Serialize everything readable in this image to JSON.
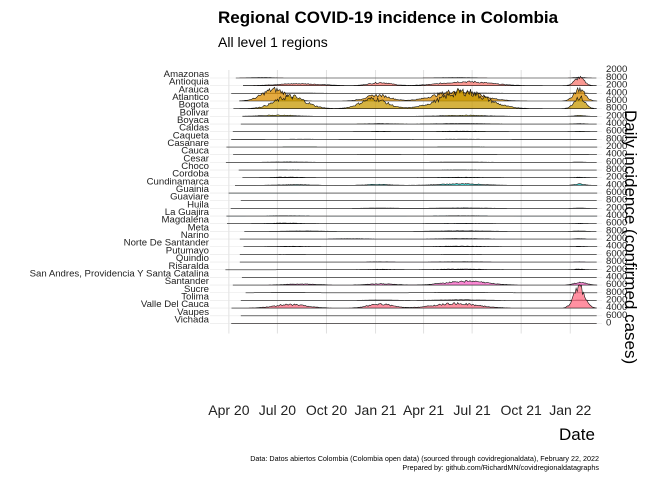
{
  "chart_data": {
    "type": "area",
    "subtype": "ridgeline",
    "title": "Regional COVID-19 incidence in Colombia",
    "subtitle": "All level 1 regions",
    "xlabel": "Date",
    "ylabel": "Daily incidence (confirmed cases)",
    "x_ticks": [
      "Apr 20",
      "Jul 20",
      "Oct 20",
      "Jan 21",
      "Apr 21",
      "Jul 21",
      "Oct 21",
      "Jan 22"
    ],
    "x_tick_dates": [
      "2020-04-01",
      "2020-07-01",
      "2020-10-01",
      "2021-01-01",
      "2021-04-01",
      "2021-07-01",
      "2021-10-01",
      "2022-01-01"
    ],
    "xlim": [
      "2020-03-06",
      "2022-02-22"
    ],
    "y_tick_labels": [
      "2000",
      "4000",
      "6000",
      "8000",
      "0"
    ],
    "y_per_row": [
      0,
      2000
    ],
    "caption": [
      "Data: Datos abiertos Colombia (Colombia open data) (sourced through covidregionaldata), February 22, 2022",
      "Prepared by: github.com/RichardMN/covidregionaldatagraphs"
    ],
    "grid": true,
    "legend": "none",
    "series": [
      {
        "name": "Amazonas",
        "color": "#f8766d",
        "peak_scale": 0.1,
        "peaks": [
          [
            "2020-06-01",
            0.3,
            20
          ],
          [
            "2021-06-01",
            0.25,
            30
          ],
          [
            "2022-01-18",
            0.4,
            10
          ]
        ]
      },
      {
        "name": "Antioquia",
        "color": "#f8766d",
        "peak_scale": 0.4,
        "peaks": [
          [
            "2020-08-10",
            0.35,
            40
          ],
          [
            "2021-01-10",
            0.55,
            20
          ],
          [
            "2021-06-20",
            0.7,
            45
          ],
          [
            "2022-01-18",
            1.4,
            9
          ]
        ]
      },
      {
        "name": "Arauca",
        "color": "#ec8239",
        "peak_scale": 0.1,
        "peaks": [
          [
            "2020-08-01",
            0.2,
            40
          ],
          [
            "2021-06-15",
            0.3,
            40
          ],
          [
            "2022-01-18",
            0.3,
            10
          ]
        ]
      },
      {
        "name": "Atlantico",
        "color": "#db8e00",
        "peak_scale": 0.9,
        "peaks": [
          [
            "2020-06-25",
            0.9,
            22
          ],
          [
            "2021-01-05",
            0.45,
            22
          ],
          [
            "2021-06-05",
            0.8,
            40
          ],
          [
            "2022-01-18",
            0.95,
            10
          ]
        ]
      },
      {
        "name": "Bogota",
        "color": "#c79800",
        "peak_scale": 1.0,
        "peaks": [
          [
            "2020-07-25",
            0.85,
            28
          ],
          [
            "2020-12-28",
            0.7,
            24
          ],
          [
            "2021-06-15",
            1.2,
            42
          ],
          [
            "2022-01-18",
            0.8,
            10
          ]
        ]
      },
      {
        "name": "Bolivar",
        "color": "#afa100",
        "peak_scale": 0.15,
        "peaks": [
          [
            "2020-07-01",
            0.6,
            30
          ],
          [
            "2021-06-15",
            0.5,
            40
          ],
          [
            "2022-01-18",
            0.4,
            10
          ]
        ]
      },
      {
        "name": "Boyaca",
        "color": "#96a900",
        "peak_scale": 0.08,
        "peaks": [
          [
            "2021-01-10",
            0.3,
            25
          ],
          [
            "2021-06-10",
            0.4,
            40
          ],
          [
            "2022-01-18",
            0.3,
            10
          ]
        ]
      },
      {
        "name": "Caldas",
        "color": "#72b000",
        "peak_scale": 0.08,
        "peaks": [
          [
            "2021-01-10",
            0.3,
            25
          ],
          [
            "2021-06-10",
            0.4,
            40
          ],
          [
            "2022-01-18",
            0.3,
            10
          ]
        ]
      },
      {
        "name": "Caqueta",
        "color": "#3fb500",
        "peak_scale": 0.05,
        "peaks": [
          [
            "2020-08-15",
            0.2,
            30
          ],
          [
            "2021-06-10",
            0.2,
            40
          ]
        ]
      },
      {
        "name": "Casanare",
        "color": "#00b813",
        "peak_scale": 0.05,
        "peaks": [
          [
            "2020-08-15",
            0.2,
            30
          ],
          [
            "2021-06-10",
            0.2,
            40
          ]
        ]
      },
      {
        "name": "Cauca",
        "color": "#00bb4e",
        "peak_scale": 0.05,
        "peaks": [
          [
            "2021-01-10",
            0.25,
            25
          ],
          [
            "2021-06-10",
            0.3,
            40
          ],
          [
            "2022-01-18",
            0.3,
            10
          ]
        ]
      },
      {
        "name": "Cesar",
        "color": "#00bd73",
        "peak_scale": 0.08,
        "peaks": [
          [
            "2020-07-20",
            0.4,
            30
          ],
          [
            "2021-06-10",
            0.3,
            40
          ],
          [
            "2022-01-18",
            0.3,
            10
          ]
        ]
      },
      {
        "name": "Choco",
        "color": "#00bf8f",
        "peak_scale": 0.04,
        "peaks": [
          [
            "2020-07-20",
            0.2,
            30
          ],
          [
            "2021-06-10",
            0.2,
            40
          ]
        ]
      },
      {
        "name": "Cordoba",
        "color": "#00c0a8",
        "peak_scale": 0.1,
        "peaks": [
          [
            "2020-07-20",
            0.4,
            25
          ],
          [
            "2021-06-10",
            0.3,
            40
          ],
          [
            "2022-01-18",
            0.3,
            10
          ]
        ]
      },
      {
        "name": "Cundinamarca",
        "color": "#00bfbd",
        "peak_scale": 0.2,
        "peaks": [
          [
            "2020-08-01",
            0.25,
            30
          ],
          [
            "2021-01-05",
            0.35,
            22
          ],
          [
            "2021-06-10",
            0.55,
            40
          ],
          [
            "2022-01-18",
            0.5,
            10
          ]
        ]
      },
      {
        "name": "Guainia",
        "color": "#00bcd1",
        "peak_scale": 0.02,
        "peaks": [
          [
            "2021-06-10",
            0.2,
            40
          ]
        ]
      },
      {
        "name": "Guaviare",
        "color": "#00b8e2",
        "peak_scale": 0.02,
        "peaks": [
          [
            "2021-06-10",
            0.2,
            40
          ]
        ]
      },
      {
        "name": "Huila",
        "color": "#00b2f1",
        "peak_scale": 0.08,
        "peaks": [
          [
            "2021-01-10",
            0.3,
            25
          ],
          [
            "2021-06-10",
            0.4,
            40
          ],
          [
            "2022-01-18",
            0.3,
            10
          ]
        ]
      },
      {
        "name": "La Guajira",
        "color": "#00abfd",
        "peak_scale": 0.06,
        "peaks": [
          [
            "2020-07-20",
            0.3,
            30
          ],
          [
            "2021-06-10",
            0.3,
            40
          ]
        ]
      },
      {
        "name": "Magdalena",
        "color": "#3ba1ff",
        "peak_scale": 0.08,
        "peaks": [
          [
            "2020-07-15",
            0.5,
            30
          ],
          [
            "2021-06-10",
            0.3,
            40
          ],
          [
            "2022-01-18",
            0.3,
            10
          ]
        ]
      },
      {
        "name": "Meta",
        "color": "#7897ff",
        "peak_scale": 0.1,
        "peaks": [
          [
            "2020-08-20",
            0.3,
            30
          ],
          [
            "2021-06-10",
            0.45,
            40
          ],
          [
            "2022-01-18",
            0.3,
            10
          ]
        ]
      },
      {
        "name": "Narino",
        "color": "#9b8cff",
        "peak_scale": 0.08,
        "peaks": [
          [
            "2020-11-15",
            0.3,
            30
          ],
          [
            "2021-06-10",
            0.4,
            40
          ],
          [
            "2022-01-18",
            0.3,
            10
          ]
        ]
      },
      {
        "name": "Norte De Santander",
        "color": "#b882ff",
        "peak_scale": 0.1,
        "peaks": [
          [
            "2020-08-01",
            0.3,
            30
          ],
          [
            "2021-06-10",
            0.4,
            40
          ],
          [
            "2022-01-18",
            0.3,
            10
          ]
        ]
      },
      {
        "name": "Putumayo",
        "color": "#cd79ff",
        "peak_scale": 0.03,
        "peaks": [
          [
            "2020-08-01",
            0.2,
            30
          ],
          [
            "2021-06-10",
            0.2,
            40
          ]
        ]
      },
      {
        "name": "Quindio",
        "color": "#df70f8",
        "peak_scale": 0.06,
        "peaks": [
          [
            "2021-01-10",
            0.3,
            25
          ],
          [
            "2021-06-10",
            0.4,
            40
          ],
          [
            "2022-01-18",
            0.3,
            10
          ]
        ]
      },
      {
        "name": "Risaralda",
        "color": "#eb6aea",
        "peak_scale": 0.1,
        "peaks": [
          [
            "2021-01-10",
            0.3,
            25
          ],
          [
            "2021-06-10",
            0.45,
            40
          ],
          [
            "2022-01-18",
            0.4,
            10
          ]
        ]
      },
      {
        "name": "San Andres, Providencia Y Santa Catalina",
        "color": "#f563da",
        "peak_scale": 0.02,
        "peaks": [
          [
            "2021-06-10",
            0.2,
            40
          ]
        ]
      },
      {
        "name": "Santander",
        "color": "#fb61c7",
        "peak_scale": 0.3,
        "peaks": [
          [
            "2020-08-15",
            0.25,
            30
          ],
          [
            "2021-01-10",
            0.3,
            25
          ],
          [
            "2021-06-20",
            0.9,
            38
          ],
          [
            "2022-01-20",
            0.6,
            12
          ]
        ]
      },
      {
        "name": "Sucre",
        "color": "#ff62b2",
        "peak_scale": 0.06,
        "peaks": [
          [
            "2020-07-20",
            0.3,
            25
          ],
          [
            "2021-06-10",
            0.3,
            40
          ]
        ]
      },
      {
        "name": "Tolima",
        "color": "#ff659b",
        "peak_scale": 0.1,
        "peaks": [
          [
            "2021-01-10",
            0.3,
            25
          ],
          [
            "2021-06-10",
            0.45,
            40
          ],
          [
            "2022-01-18",
            0.3,
            10
          ]
        ]
      },
      {
        "name": "Valle Del Cauca",
        "color": "#ff6b82",
        "peak_scale": 0.7,
        "peaks": [
          [
            "2020-07-25",
            0.35,
            30
          ],
          [
            "2021-01-10",
            0.4,
            22
          ],
          [
            "2021-06-01",
            0.45,
            40
          ],
          [
            "2022-01-18",
            2.2,
            10
          ]
        ]
      },
      {
        "name": "Vaupes",
        "color": "#ff6e6e",
        "peak_scale": 0.01,
        "peaks": [
          [
            "2021-06-10",
            0.1,
            40
          ]
        ]
      },
      {
        "name": "Vichada",
        "color": "#ff7262",
        "peak_scale": 0.01,
        "peaks": [
          [
            "2021-06-10",
            0.1,
            40
          ]
        ]
      }
    ]
  }
}
